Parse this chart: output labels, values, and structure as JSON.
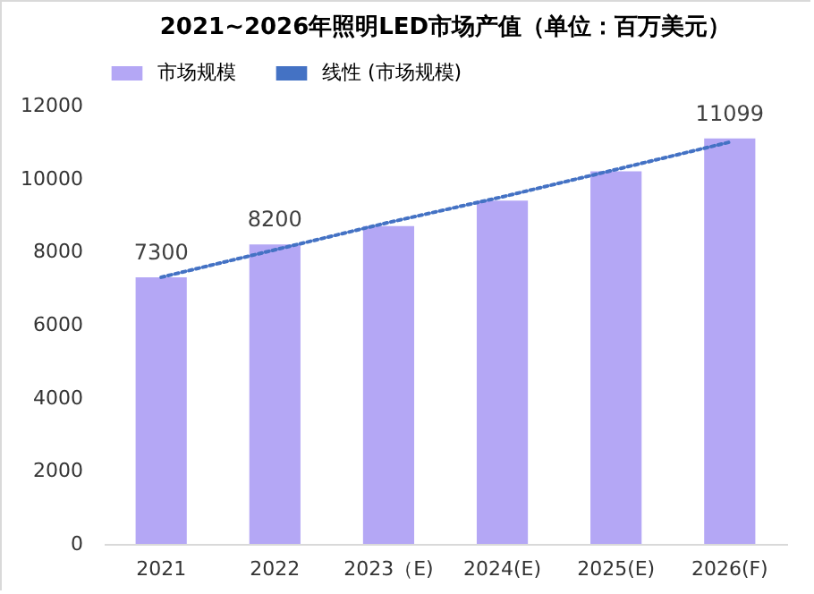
{
  "chart_data": {
    "type": "bar",
    "title": "2021~2026年照明LED市场产值（单位：百万美元）",
    "categories": [
      "2021",
      "2022",
      "2023（E)",
      "2024(E)",
      "2025(E)",
      "2026(F)"
    ],
    "series": [
      {
        "name": "市场规模",
        "color": "#b4a7f5",
        "values": [
          7300,
          8200,
          8700,
          9400,
          10200,
          11099
        ],
        "value_labels": [
          "7300",
          "8200",
          null,
          null,
          null,
          "11099"
        ]
      },
      {
        "name": "线性 (市场规模)",
        "type": "line",
        "color": "#4472c4",
        "line_style": "dotted",
        "values": [
          7300,
          8050,
          8800,
          9500,
          10250,
          11000
        ]
      }
    ],
    "ylim": [
      0,
      12000
    ],
    "yticks": [
      0,
      2000,
      4000,
      6000,
      8000,
      10000,
      12000
    ],
    "legend": "top"
  }
}
